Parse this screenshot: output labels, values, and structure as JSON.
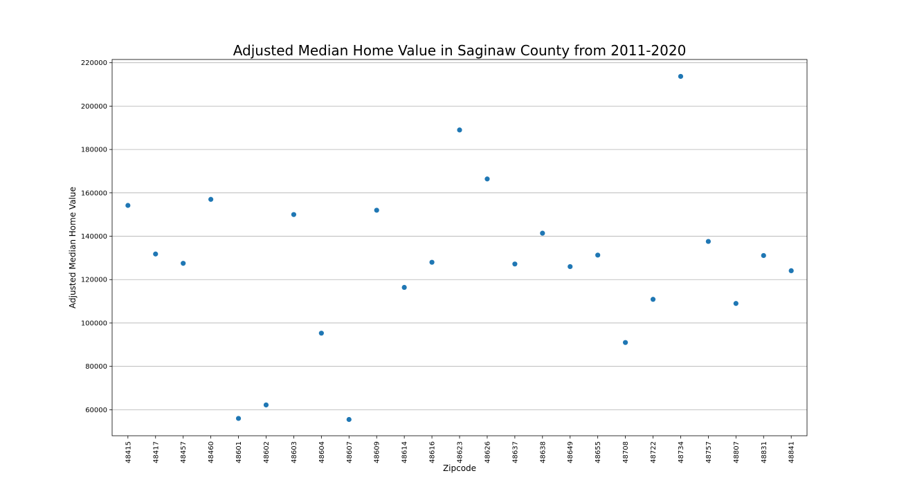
{
  "chart_data": {
    "type": "scatter",
    "title": "Adjusted Median Home Value in Saginaw County from 2011-2020",
    "xlabel": "Zipcode",
    "ylabel": "Adjusted Median Home Value",
    "categories": [
      "48415",
      "48417",
      "48457",
      "48460",
      "48601",
      "48602",
      "48603",
      "48604",
      "48607",
      "48609",
      "48614",
      "48616",
      "48623",
      "48626",
      "48637",
      "48638",
      "48649",
      "48655",
      "48708",
      "48722",
      "48734",
      "48757",
      "48807",
      "48831",
      "48841"
    ],
    "values": [
      154200,
      131800,
      127500,
      157000,
      56000,
      62200,
      150000,
      95300,
      55500,
      152000,
      116400,
      128000,
      189000,
      166400,
      127200,
      141400,
      126000,
      131300,
      91000,
      110900,
      213700,
      137600,
      109000,
      131100,
      124100
    ],
    "ylim": [
      48000,
      221500
    ],
    "yticks": [
      60000,
      80000,
      100000,
      120000,
      140000,
      160000,
      180000,
      200000,
      220000
    ],
    "grid": "y",
    "marker_color": "#1f77b4"
  }
}
